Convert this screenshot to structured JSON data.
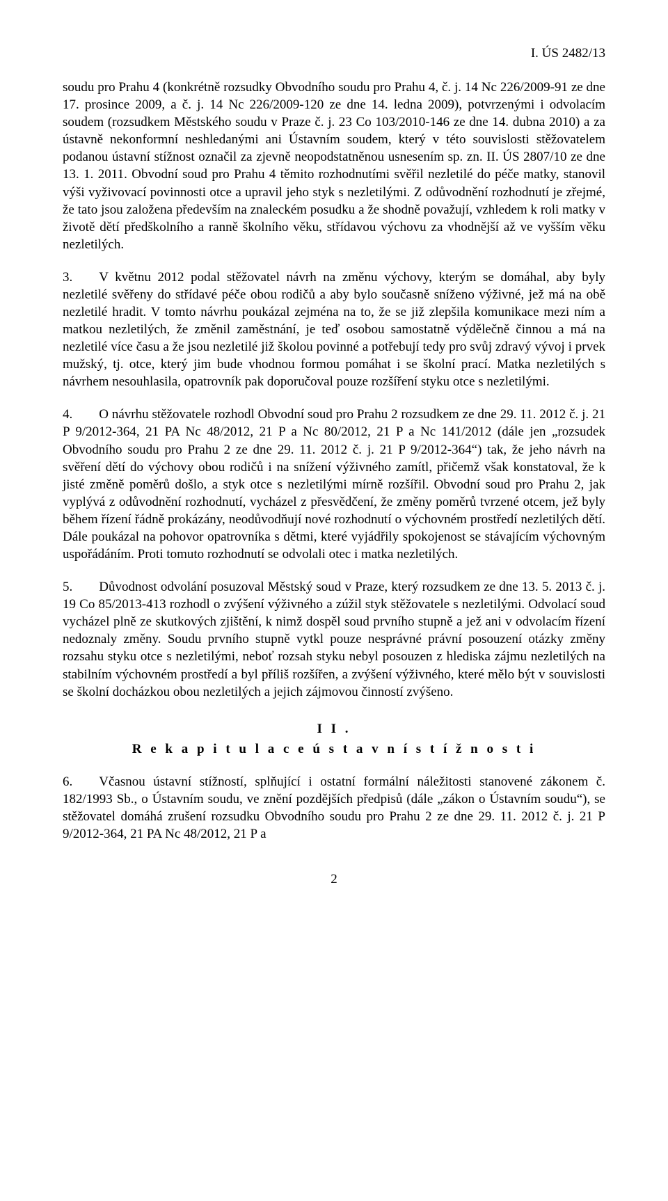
{
  "case_id": "I. ÚS 2482/13",
  "paragraphs": {
    "p1": "soudu pro Prahu 4 (konkrétně rozsudky Obvodního soudu pro Prahu 4, č. j. 14 Nc 226/2009-91 ze dne 17. prosince 2009, a č. j. 14 Nc 226/2009-120 ze dne 14. ledna 2009), potvrzenými i odvolacím soudem (rozsudkem Městského soudu v Praze č. j. 23 Co 103/2010-146 ze dne 14. dubna 2010) a za ústavně nekonformní neshledanými ani Ústavním soudem, který v této souvislosti stěžovatelem podanou ústavní stížnost označil za zjevně neopodstatněnou usnesením sp. zn. II. ÚS 2807/10 ze dne 13. 1. 2011. Obvodní soud pro Prahu 4 těmito rozhodnutími svěřil nezletilé do péče matky, stanovil výši vyživovací povinnosti otce a upravil jeho styk s nezletilými. Z odůvodnění rozhodnutí je zřejmé, že tato jsou založena především na znaleckém posudku a že shodně považují, vzhledem k roli matky v životě dětí předškolního a ranně školního věku, střídavou výchovu za vhodnější až ve vyšším věku nezletilých.",
    "p2": "3.  V květnu 2012 podal stěžovatel návrh na změnu výchovy, kterým se domáhal, aby byly nezletilé svěřeny do střídavé péče obou rodičů a aby bylo současně sníženo výživné, jež má na obě nezletilé hradit. V tomto návrhu poukázal zejména na to, že se již zlepšila komunikace mezi ním a matkou nezletilých, že změnil zaměstnání, je teď osobou samostatně výdělečně činnou a má na nezletilé více času a že jsou nezletilé již školou povinné a potřebují tedy pro svůj zdravý vývoj i prvek mužský, tj. otce, který jim bude vhodnou formou pomáhat i se školní prací. Matka nezletilých s návrhem nesouhlasila, opatrovník pak doporučoval pouze rozšíření styku otce s nezletilými.",
    "p3": "4.  O návrhu stěžovatele rozhodl Obvodní soud pro Prahu 2 rozsudkem ze dne 29. 11. 2012 č. j. 21 P 9/2012-364, 21 PA Nc 48/2012, 21 P a Nc 80/2012, 21 P a Nc 141/2012 (dále jen „rozsudek Obvodního soudu pro Prahu 2 ze dne 29. 11. 2012 č. j. 21 P 9/2012-364“) tak, že jeho návrh na svěření dětí do výchovy obou rodičů i na snížení výživného zamítl, přičemž však konstatoval, že k jisté změně poměrů došlo, a styk otce s nezletilými mírně rozšířil. Obvodní soud pro Prahu 2, jak vyplývá z odůvodnění rozhodnutí, vycházel z přesvědčení, že změny poměrů tvrzené otcem, jež byly během řízení řádně prokázány, neodůvodňují nové rozhodnutí o výchovném prostředí nezletilých dětí. Dále poukázal na pohovor opatrovníka s dětmi, které vyjádřily spokojenost se stávajícím výchovným uspořádáním. Proti tomuto rozhodnutí se odvolali otec i matka nezletilých.",
    "p4": "5.  Důvodnost odvolání posuzoval Městský soud v Praze, který rozsudkem ze dne 13. 5. 2013 č. j. 19 Co 85/2013-413 rozhodl o zvýšení výživného a zúžil styk stěžovatele s nezletilými. Odvolací soud vycházel plně ze skutkových zjištění, k nimž dospěl soud prvního stupně a jež ani v odvolacím řízení nedoznaly změny. Soudu prvního stupně vytkl pouze nesprávné právní posouzení otázky změny rozsahu styku otce s nezletilými, neboť rozsah styku nebyl posouzen z hlediska zájmu nezletilých na stabilním výchovném prostředí a byl příliš rozšířen, a zvýšení výživného, které mělo být v souvislosti se školní docházkou obou nezletilých a jejich zájmovou činností zvýšeno.",
    "section_num": "I I .",
    "section_title": "R e k a p i t u l a c e   ú s t a v n í   s t í ž n o s t i",
    "p5": "6.  Včasnou ústavní stížností, splňující i ostatní formální náležitosti stanovené zákonem č. 182/1993 Sb., o Ústavním soudu, ve znění pozdějších předpisů (dále „zákon o Ústavním soudu“), se stěžovatel domáhá zrušení rozsudku Obvodního soudu pro Prahu 2 ze dne 29. 11. 2012 č. j. 21 P 9/2012-364, 21 PA Nc 48/2012, 21 P a"
  },
  "page_number": "2"
}
